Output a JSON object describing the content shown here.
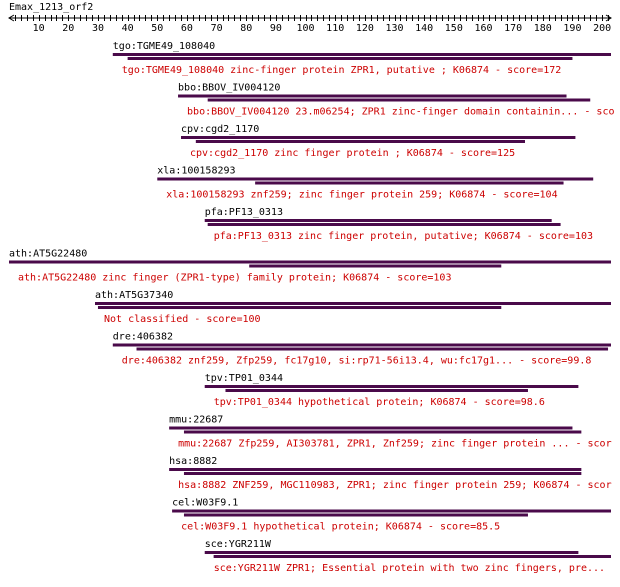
{
  "query": {
    "title": "Emax_1213_orf2",
    "scale_min": 0,
    "scale_max": 203,
    "tick_labels": [
      "10",
      "20",
      "30",
      "40",
      "50",
      "60",
      "70",
      "80",
      "90",
      "100",
      "110",
      "120",
      "130",
      "140",
      "150",
      "160",
      "170",
      "180",
      "190",
      "200"
    ]
  },
  "colors": {
    "bar": "#4a0a4a",
    "description": "#cc0000",
    "label": "#000000"
  },
  "hits": [
    {
      "name": "tgo:TGME49_108040",
      "description": "tgo:TGME49_108040  zinc-finger protein ZPR1, putative ; K06874 - score=172",
      "bars": [
        [
          35,
          203
        ],
        [
          40,
          190
        ]
      ]
    },
    {
      "name": "bbo:BBOV_IV004120",
      "description": "bbo:BBOV_IV004120  23.m06254; ZPR1 zinc-finger domain containin... - sco",
      "bars": [
        [
          57,
          188
        ],
        [
          67,
          196
        ]
      ]
    },
    {
      "name": "cpv:cgd2_1170",
      "description": "cpv:cgd2_1170  zinc finger protein ; K06874 - score=125",
      "bars": [
        [
          58,
          191
        ],
        [
          63,
          174
        ]
      ]
    },
    {
      "name": "xla:100158293",
      "description": "xla:100158293  znf259; zinc finger protein 259; K06874 - score=104",
      "bars": [
        [
          50,
          197
        ],
        [
          83,
          187
        ]
      ]
    },
    {
      "name": "pfa:PF13_0313",
      "description": "pfa:PF13_0313  zinc finger protein, putative; K06874 - score=103",
      "bars": [
        [
          66,
          183
        ],
        [
          67,
          186
        ]
      ]
    },
    {
      "name": "ath:AT5G22480",
      "description": "ath:AT5G22480  zinc finger (ZPR1-type) family protein; K06874 - score=103",
      "bars": [
        [
          0,
          203
        ],
        [
          81,
          166
        ]
      ]
    },
    {
      "name": "ath:AT5G37340",
      "description": "Not classified - score=100",
      "bars": [
        [
          29,
          203
        ],
        [
          30,
          166
        ]
      ]
    },
    {
      "name": "dre:406382",
      "description": "dre:406382  znf259, Zfp259, fc17g10, si:rp71-56i13.4, wu:fc17g1... - score=99.8",
      "bars": [
        [
          35,
          203
        ],
        [
          43,
          202
        ]
      ]
    },
    {
      "name": "tpv:TP01_0344",
      "description": "tpv:TP01_0344  hypothetical protein; K06874 - score=98.6",
      "bars": [
        [
          66,
          192
        ],
        [
          73,
          175
        ]
      ]
    },
    {
      "name": "mmu:22687",
      "description": "mmu:22687  Zfp259, AI303781, ZPR1, Znf259; zinc finger protein ... - scor",
      "bars": [
        [
          54,
          190
        ],
        [
          59,
          193
        ]
      ]
    },
    {
      "name": "hsa:8882",
      "description": "hsa:8882  ZNF259, MGC110983, ZPR1; zinc finger protein 259; K06874 - scor",
      "bars": [
        [
          54,
          193
        ],
        [
          59,
          193
        ]
      ]
    },
    {
      "name": "cel:W03F9.1",
      "description": "cel:W03F9.1  hypothetical protein; K06874 - score=85.5",
      "bars": [
        [
          55,
          203
        ],
        [
          59,
          175
        ]
      ]
    },
    {
      "name": "sce:YGR211W",
      "description": "sce:YGR211W  ZPR1; Essential protein with two zinc fingers, pre...",
      "bars": [
        [
          66,
          192
        ],
        [
          69,
          203
        ]
      ]
    }
  ]
}
